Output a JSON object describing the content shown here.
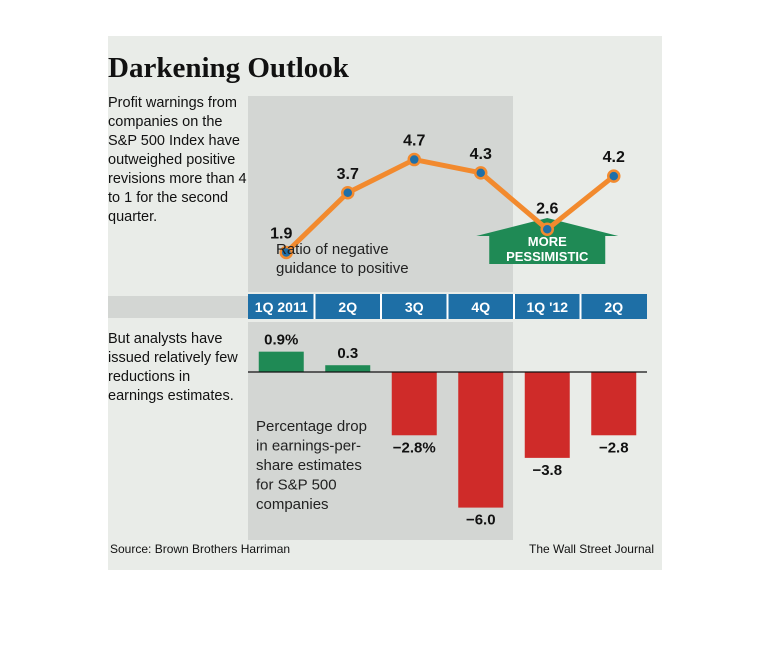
{
  "title": "Darkening Outlook",
  "description_top": "Profit warnings from companies on the S&P 500 Index have outweighed positive revisions more than 4 to 1 for the second quarter.",
  "description_bottom": "But analysts have issued relatively few reductions in earnings estimates.",
  "source": "Source: Brown Brothers Harriman",
  "credit": "The Wall Street Journal",
  "colors": {
    "line": "#f28a2e",
    "marker": "#1f6fa8",
    "positive_bar": "#1f8a55",
    "negative_bar": "#cf2b29",
    "quarter_band": "#1e6fa6",
    "shade": "#d3d6d3",
    "background": "#e9ece8",
    "arrow": "#1f8a55"
  },
  "chart_data": [
    {
      "type": "line",
      "categories": [
        "1Q 2011",
        "2Q",
        "3Q",
        "4Q",
        "1Q '12",
        "2Q"
      ],
      "values": [
        1.9,
        3.7,
        4.7,
        4.3,
        2.6,
        4.2
      ],
      "labels": [
        "1.9",
        "3.7",
        "4.7",
        "4.3",
        "2.6",
        "4.2"
      ],
      "annotation": "Ratio of negative guidance to positive",
      "callout": [
        "MORE",
        "PESSIMISTIC"
      ]
    },
    {
      "type": "bar",
      "categories": [
        "1Q 2011",
        "2Q",
        "3Q",
        "4Q",
        "1Q '12",
        "2Q"
      ],
      "values": [
        0.9,
        0.3,
        -2.8,
        -6.0,
        -3.8,
        -2.8
      ],
      "labels": [
        "0.9%",
        "0.3",
        "−2.8%",
        "−6.0",
        "−3.8",
        "−2.8"
      ],
      "annotation": "Percentage drop in earnings-per-share estimates for S&P 500 companies"
    }
  ]
}
